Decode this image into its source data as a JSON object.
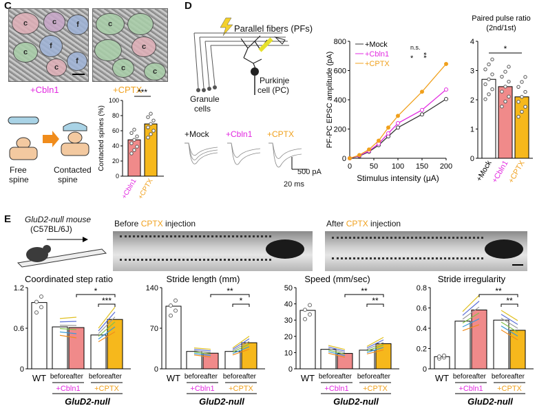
{
  "panels": {
    "c": "C",
    "d": "D",
    "e": "E"
  },
  "panel_c": {
    "em_labels": [
      "+Cbln1",
      "+CPTX"
    ],
    "blob_tags": [
      "c",
      "f"
    ],
    "schematic": {
      "free": "Free\nspine",
      "free_l1": "Free",
      "free_l2": "spine",
      "contacted_l1": "Contacted",
      "contacted_l2": "spine"
    },
    "ylabel": "Contacted spines (%)",
    "sig": "***",
    "yticks": [
      "0",
      "20",
      "40",
      "60",
      "80",
      "100"
    ],
    "xcats": [
      "+Cbln1",
      "+CPTX"
    ]
  },
  "panel_d": {
    "diagram": {
      "pf": "Parallel fibers (PFs)",
      "purk_l1": "Purkinje",
      "purk_l2": "cell (PC)",
      "gran_l1": "Granule",
      "gran_l2": "cells"
    },
    "traces": [
      "+Mock",
      "+Cbln1",
      "+CPTX"
    ],
    "scale_pa": "500 pA",
    "scale_ms": "20 ms",
    "line_ylabel": "PF-PC EPSC amplitude (pA)",
    "line_xlabel": "Stimulus intensity (μA)",
    "legend": [
      "+Mock",
      "+Cbln1",
      "+CPTX"
    ],
    "ns": "n.s.",
    "sig1": "*",
    "sig2": "**",
    "ppr_title1": "Paired pulse ratio",
    "ppr_title2": "(2nd/1st)",
    "ppr_sig": "*",
    "ppr_cats": [
      "+Mock",
      "+Cbln1",
      "+CPTX"
    ]
  },
  "panel_e": {
    "mouse_l1": "GluD2-null mouse",
    "mouse_l2": "(C57BL/6J)",
    "before_text_a": "Before ",
    "before_cptx": "CPTX",
    "before_text_b": " injection",
    "after_text_a": "After ",
    "after_cptx": "CPTX",
    "after_text_b": " injection",
    "xcat": [
      "WT",
      "before",
      "after",
      "before",
      "after"
    ],
    "group_cbln1": "+Cbln1",
    "group_cptx": "+CPTX",
    "genotype": "GluD2-null"
  },
  "colors": {
    "mock": "#333333",
    "cbln1": "#e229e0",
    "cptx": "#f0a01c",
    "bar_cbln1": "#f08a8a",
    "bar_cptx": "#f6b81c"
  },
  "chart_data": [
    {
      "type": "bar",
      "id": "contacted_spines",
      "ylabel": "Contacted spines (%)",
      "categories": [
        "+Cbln1",
        "+CPTX"
      ],
      "values": [
        48,
        69
      ],
      "ylim": [
        0,
        100
      ],
      "yticks": [
        0,
        20,
        40,
        60,
        80,
        100
      ]
    },
    {
      "type": "line",
      "id": "epsc",
      "xlabel": "Stimulus intensity (μA)",
      "ylabel": "PF-PC EPSC amplitude (pA)",
      "x": [
        0,
        20,
        40,
        60,
        80,
        100,
        150,
        200
      ],
      "xlim": [
        0,
        200
      ],
      "ylim": [
        0,
        800
      ],
      "xticks": [
        0,
        50,
        100,
        150,
        200
      ],
      "yticks": [
        0,
        200,
        400,
        600,
        800
      ],
      "series": [
        {
          "name": "+Mock",
          "values": [
            0,
            15,
            45,
            90,
            150,
            210,
            300,
            405
          ]
        },
        {
          "name": "+Cbln1",
          "values": [
            0,
            18,
            50,
            100,
            170,
            240,
            330,
            470
          ]
        },
        {
          "name": "+CPTX",
          "values": [
            0,
            22,
            60,
            120,
            210,
            290,
            455,
            645
          ]
        }
      ]
    },
    {
      "type": "bar",
      "id": "ppr",
      "title": "Paired pulse ratio (2nd/1st)",
      "categories": [
        "+Mock",
        "+Cbln1",
        "+CPTX"
      ],
      "values": [
        2.7,
        2.45,
        2.1
      ],
      "ylim": [
        0,
        4
      ],
      "yticks": [
        0,
        1,
        2,
        3,
        4
      ]
    },
    {
      "type": "bar",
      "id": "coord",
      "title": "Coordinated step ratio",
      "categories": [
        "WT",
        "before",
        "after",
        "before",
        "after"
      ],
      "values": [
        0.98,
        0.62,
        0.61,
        0.5,
        0.73
      ],
      "ylim": [
        0,
        1.2
      ],
      "yticks": [
        0,
        0.6,
        1.2
      ],
      "ytick_labels": [
        "0",
        "0.6",
        "1.2"
      ],
      "sig": [
        {
          "label": "*",
          "pair": [
            2,
            4
          ]
        },
        {
          "label": "***",
          "pair": [
            3,
            4
          ]
        }
      ]
    },
    {
      "type": "bar",
      "id": "stride",
      "title": "Stride length (mm)",
      "categories": [
        "WT",
        "before",
        "after",
        "before",
        "after"
      ],
      "values": [
        108,
        30,
        27,
        30,
        45
      ],
      "ylim": [
        0,
        140
      ],
      "yticks": [
        0,
        70,
        140
      ],
      "ytick_labels": [
        "0",
        "70",
        "140"
      ],
      "sig": [
        {
          "label": "**",
          "pair": [
            2,
            4
          ]
        },
        {
          "label": "*",
          "pair": [
            3,
            4
          ]
        }
      ]
    },
    {
      "type": "bar",
      "id": "speed",
      "title": "Speed (mm/sec)",
      "categories": [
        "WT",
        "before",
        "after",
        "before",
        "after"
      ],
      "values": [
        36,
        12,
        9.5,
        11.5,
        15.5
      ],
      "ylim": [
        0,
        50
      ],
      "yticks": [
        0,
        10,
        20,
        30,
        40,
        50
      ],
      "ytick_labels": [
        "0",
        "10",
        "20",
        "30",
        "40",
        "50"
      ],
      "sig": [
        {
          "label": "**",
          "pair": [
            2,
            4
          ]
        },
        {
          "label": "**",
          "pair": [
            3,
            4
          ]
        }
      ]
    },
    {
      "type": "bar",
      "id": "irreg",
      "title": "Stride irregularity",
      "categories": [
        "WT",
        "before",
        "after",
        "before",
        "after"
      ],
      "values": [
        0.12,
        0.47,
        0.58,
        0.48,
        0.38
      ],
      "ylim": [
        0,
        0.8
      ],
      "yticks": [
        0,
        0.2,
        0.4,
        0.6,
        0.8
      ],
      "ytick_labels": [
        "0",
        "0.2",
        "0.4",
        "0.6",
        "0.8"
      ],
      "sig": [
        {
          "label": "**",
          "pair": [
            2,
            4
          ]
        },
        {
          "label": "**",
          "pair": [
            3,
            4
          ]
        }
      ]
    }
  ]
}
